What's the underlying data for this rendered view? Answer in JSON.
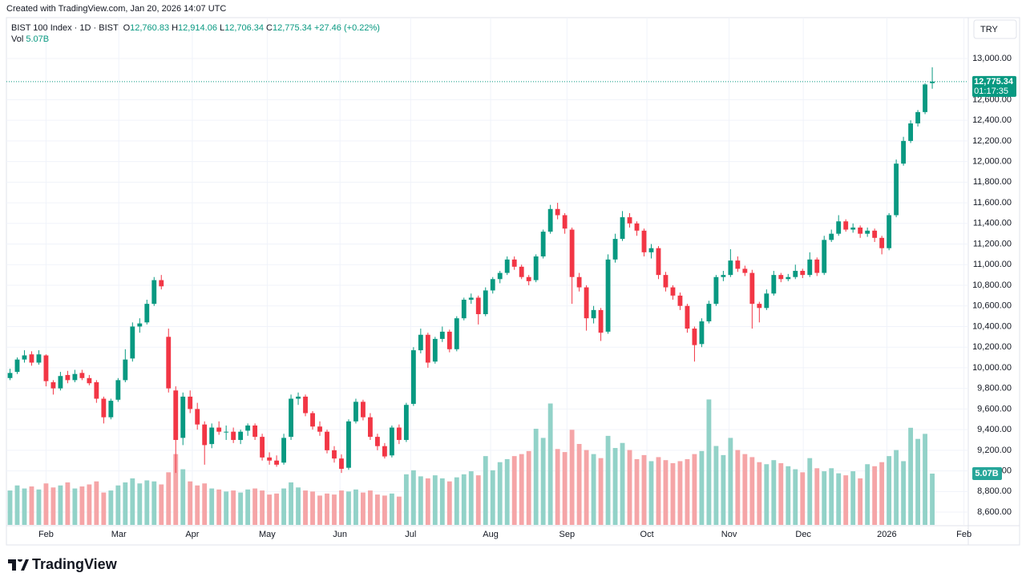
{
  "created": "Created with TradingView.com, Jan 20, 2026 14:07 UTC",
  "brand": "TradingView",
  "currency": "TRY",
  "legend": {
    "symbol": "BIST 100 Index · 1D · BIST",
    "fields": [
      {
        "key": "O",
        "value": "12,760.83"
      },
      {
        "key": "H",
        "value": "12,914.06"
      },
      {
        "key": "L",
        "value": "12,706.34"
      },
      {
        "key": "C",
        "value": "12,775.34"
      }
    ],
    "change": "+27.46 (+0.22%)",
    "vol_key": "Vol",
    "vol_value": "5.07B"
  },
  "last_price_label": "12,775.34",
  "countdown": "01:17:35",
  "volume_label": "5.07B",
  "chart_data": {
    "type": "candlestick",
    "up_color": "#089981",
    "down_color": "#f23645",
    "up_volume_color": "#92d2c8",
    "down_volume_color": "#f5a5a7",
    "grid": true,
    "xlim": [
      -0.5,
      133
    ],
    "xticks": [
      {
        "value": 5,
        "label": "Feb"
      },
      {
        "value": 15.1,
        "label": "Mar"
      },
      {
        "value": 25.3,
        "label": "Apr"
      },
      {
        "value": 35.7,
        "label": "May"
      },
      {
        "value": 45.8,
        "label": "Jun"
      },
      {
        "value": 55.6,
        "label": "Jul"
      },
      {
        "value": 66.7,
        "label": "Aug"
      },
      {
        "value": 77.3,
        "label": "Sep"
      },
      {
        "value": 88.4,
        "label": "Oct"
      },
      {
        "value": 99.8,
        "label": "Nov"
      },
      {
        "value": 110.1,
        "label": "Dec"
      },
      {
        "value": 121.7,
        "label": "2026"
      },
      {
        "value": 132.4,
        "label": "Feb"
      }
    ],
    "ylim": [
      8476,
      13396
    ],
    "yticks": [
      {
        "value": 8600,
        "label": "8,600.00"
      },
      {
        "value": 8800,
        "label": "8,800.00"
      },
      {
        "value": 9000,
        "label": "9,000.00"
      },
      {
        "value": 9200,
        "label": "9,200.00"
      },
      {
        "value": 9400,
        "label": "9,400.00"
      },
      {
        "value": 9600,
        "label": "9,600.00"
      },
      {
        "value": 9800,
        "label": "9,800.00"
      },
      {
        "value": 10000,
        "label": "10,000.00"
      },
      {
        "value": 10200,
        "label": "10,200.00"
      },
      {
        "value": 10400,
        "label": "10,400.00"
      },
      {
        "value": 10600,
        "label": "10,600.00"
      },
      {
        "value": 10800,
        "label": "10,800.00"
      },
      {
        "value": 11000,
        "label": "11,000.00"
      },
      {
        "value": 11200,
        "label": "11,200.00"
      },
      {
        "value": 11400,
        "label": "11,400.00"
      },
      {
        "value": 11600,
        "label": "11,600.00"
      },
      {
        "value": 11800,
        "label": "11,800.00"
      },
      {
        "value": 12000,
        "label": "12,000.00"
      },
      {
        "value": 12200,
        "label": "12,200.00"
      },
      {
        "value": 12400,
        "label": "12,400.00"
      },
      {
        "value": 12600,
        "label": "12,600.00"
      },
      {
        "value": 13000,
        "label": "13,000.00"
      }
    ],
    "volume_ylim": [
      0,
      16
    ],
    "candles": [
      [
        9900,
        9990,
        9880,
        9950,
        3.4
      ],
      [
        9960,
        10100,
        9940,
        10080,
        3.9
      ],
      [
        10080,
        10170,
        10050,
        10120,
        3.6
      ],
      [
        10130,
        10160,
        10020,
        10050,
        3.8
      ],
      [
        10050,
        10170,
        10030,
        10130,
        3.5
      ],
      [
        10120,
        10130,
        9820,
        9870,
        4.1
      ],
      [
        9860,
        9880,
        9740,
        9800,
        3.7
      ],
      [
        9800,
        9960,
        9780,
        9920,
        3.9
      ],
      [
        9930,
        9970,
        9850,
        9880,
        4.2
      ],
      [
        9880,
        9980,
        9860,
        9940,
        3.6
      ],
      [
        9950,
        9980,
        9880,
        9900,
        3.8
      ],
      [
        9900,
        9930,
        9830,
        9850,
        4.0
      ],
      [
        9860,
        9880,
        9660,
        9700,
        4.3
      ],
      [
        9700,
        9720,
        9460,
        9520,
        3.2
      ],
      [
        9520,
        9700,
        9500,
        9680,
        3.4
      ],
      [
        9690,
        9900,
        9670,
        9880,
        3.9
      ],
      [
        9880,
        10180,
        9860,
        10080,
        4.2
      ],
      [
        10090,
        10440,
        10060,
        10400,
        4.6
      ],
      [
        10400,
        10480,
        10340,
        10430,
        4.1
      ],
      [
        10440,
        10660,
        10420,
        10620,
        4.4
      ],
      [
        10620,
        10880,
        10600,
        10850,
        4.3
      ],
      [
        10850,
        10900,
        10760,
        10790,
        4.0
      ],
      [
        10300,
        10380,
        9760,
        9800,
        5.2
      ],
      [
        9780,
        9820,
        8980,
        9300,
        7.0
      ],
      [
        9320,
        9760,
        9250,
        9720,
        5.5
      ],
      [
        9720,
        9780,
        9560,
        9600,
        4.3
      ],
      [
        9600,
        9660,
        9400,
        9450,
        3.9
      ],
      [
        9450,
        9480,
        9060,
        9250,
        4.1
      ],
      [
        9260,
        9460,
        9220,
        9420,
        3.6
      ],
      [
        9420,
        9480,
        9350,
        9380,
        3.5
      ],
      [
        9380,
        9440,
        9300,
        9380,
        3.3
      ],
      [
        9380,
        9420,
        9270,
        9300,
        3.4
      ],
      [
        9300,
        9400,
        9260,
        9380,
        3.2
      ],
      [
        9390,
        9460,
        9340,
        9440,
        3.5
      ],
      [
        9440,
        9460,
        9300,
        9330,
        3.6
      ],
      [
        9330,
        9360,
        9100,
        9130,
        3.4
      ],
      [
        9130,
        9180,
        9060,
        9100,
        3.0
      ],
      [
        9100,
        9150,
        9040,
        9060,
        3.1
      ],
      [
        9080,
        9360,
        9060,
        9320,
        3.6
      ],
      [
        9330,
        9740,
        9300,
        9700,
        4.2
      ],
      [
        9700,
        9760,
        9640,
        9720,
        3.7
      ],
      [
        9720,
        9740,
        9530,
        9560,
        3.4
      ],
      [
        9560,
        9580,
        9400,
        9430,
        3.3
      ],
      [
        9430,
        9480,
        9340,
        9380,
        2.9
      ],
      [
        9380,
        9400,
        9170,
        9200,
        3.1
      ],
      [
        9200,
        9240,
        9080,
        9120,
        3.0
      ],
      [
        9120,
        9160,
        8980,
        9020,
        3.4
      ],
      [
        9030,
        9500,
        9010,
        9480,
        3.3
      ],
      [
        9480,
        9700,
        9460,
        9670,
        3.5
      ],
      [
        9670,
        9690,
        9490,
        9520,
        3.2
      ],
      [
        9520,
        9560,
        9300,
        9330,
        3.4
      ],
      [
        9330,
        9360,
        9200,
        9240,
        3.0
      ],
      [
        9240,
        9270,
        9120,
        9140,
        2.9
      ],
      [
        9150,
        9440,
        9130,
        9420,
        3.1
      ],
      [
        9420,
        9450,
        9260,
        9300,
        2.8
      ],
      [
        9300,
        9660,
        9280,
        9640,
        5.0
      ],
      [
        9650,
        10200,
        9630,
        10170,
        5.4
      ],
      [
        10170,
        10380,
        10140,
        10320,
        4.8
      ],
      [
        10320,
        10340,
        10000,
        10050,
        4.6
      ],
      [
        10060,
        10300,
        10040,
        10280,
        4.9
      ],
      [
        10280,
        10400,
        10250,
        10350,
        4.6
      ],
      [
        10350,
        10370,
        10150,
        10180,
        4.3
      ],
      [
        10180,
        10500,
        10160,
        10480,
        4.7
      ],
      [
        10480,
        10680,
        10460,
        10660,
        5.0
      ],
      [
        10660,
        10720,
        10620,
        10680,
        5.3
      ],
      [
        10680,
        10700,
        10420,
        10520,
        4.9
      ],
      [
        10520,
        10780,
        10500,
        10750,
        6.8
      ],
      [
        10750,
        10880,
        10720,
        10860,
        5.4
      ],
      [
        10860,
        10940,
        10820,
        10920,
        6.2
      ],
      [
        10920,
        11080,
        10900,
        11050,
        6.5
      ],
      [
        11050,
        11080,
        10950,
        10980,
        6.8
      ],
      [
        10980,
        11000,
        10860,
        10880,
        7.0
      ],
      [
        10880,
        10900,
        10800,
        10840,
        7.3
      ],
      [
        10850,
        11100,
        10830,
        11080,
        9.5
      ],
      [
        11080,
        11340,
        11060,
        11320,
        8.6
      ],
      [
        11320,
        11580,
        11300,
        11540,
        12.0
      ],
      [
        11540,
        11600,
        11440,
        11480,
        7.5
      ],
      [
        11480,
        11500,
        11300,
        11350,
        7.2
      ],
      [
        11340,
        11360,
        10620,
        10880,
        9.4
      ],
      [
        10880,
        10920,
        10740,
        10780,
        8.0
      ],
      [
        10780,
        10800,
        10360,
        10480,
        7.4
      ],
      [
        10480,
        10600,
        10430,
        10560,
        7.0
      ],
      [
        10560,
        10580,
        10260,
        10340,
        6.6
      ],
      [
        10350,
        11100,
        10330,
        11050,
        8.8
      ],
      [
        11050,
        11300,
        11020,
        11250,
        7.6
      ],
      [
        11250,
        11520,
        11230,
        11460,
        8.1
      ],
      [
        11460,
        11500,
        11360,
        11400,
        7.4
      ],
      [
        11400,
        11420,
        11280,
        11330,
        6.5
      ],
      [
        11330,
        11350,
        11080,
        11120,
        6.9
      ],
      [
        11120,
        11200,
        11060,
        11160,
        6.3
      ],
      [
        11160,
        11180,
        10860,
        10900,
        6.7
      ],
      [
        10900,
        10930,
        10740,
        10780,
        6.4
      ],
      [
        10780,
        10800,
        10660,
        10700,
        6.1
      ],
      [
        10700,
        10730,
        10560,
        10600,
        6.3
      ],
      [
        10600,
        10620,
        10340,
        10380,
        6.5
      ],
      [
        10380,
        10400,
        10060,
        10220,
        7.0
      ],
      [
        10230,
        10480,
        10200,
        10450,
        7.3
      ],
      [
        10450,
        10650,
        10430,
        10620,
        12.4
      ],
      [
        10620,
        10900,
        10600,
        10880,
        7.8
      ],
      [
        10880,
        10940,
        10840,
        10900,
        6.9
      ],
      [
        10900,
        11150,
        10880,
        11040,
        8.6
      ],
      [
        11040,
        11080,
        10930,
        10960,
        7.4
      ],
      [
        10960,
        10990,
        10890,
        10920,
        7.0
      ],
      [
        10920,
        10950,
        10380,
        10620,
        6.7
      ],
      [
        10620,
        10640,
        10440,
        10580,
        6.2
      ],
      [
        10580,
        10760,
        10560,
        10720,
        6.0
      ],
      [
        10720,
        10940,
        10700,
        10900,
        6.4
      ],
      [
        10900,
        10920,
        10830,
        10860,
        6.1
      ],
      [
        10860,
        10910,
        10840,
        10880,
        5.8
      ],
      [
        10880,
        11000,
        10860,
        10940,
        5.5
      ],
      [
        10940,
        10960,
        10870,
        10900,
        5.2
      ],
      [
        10900,
        11120,
        10880,
        11050,
        6.6
      ],
      [
        11050,
        11070,
        10890,
        10920,
        5.6
      ],
      [
        10920,
        11280,
        10900,
        11240,
        5.3
      ],
      [
        11240,
        11340,
        11220,
        11300,
        5.6
      ],
      [
        11300,
        11480,
        11280,
        11420,
        5.1
      ],
      [
        11420,
        11440,
        11320,
        11340,
        4.9
      ],
      [
        11340,
        11400,
        11310,
        11360,
        5.3
      ],
      [
        11360,
        11380,
        11260,
        11300,
        4.6
      ],
      [
        11300,
        11360,
        11270,
        11330,
        6.0
      ],
      [
        11330,
        11350,
        11220,
        11260,
        5.8
      ],
      [
        11260,
        11280,
        11100,
        11160,
        6.2
      ],
      [
        11160,
        11500,
        11140,
        11480,
        6.8
      ],
      [
        11480,
        12020,
        11460,
        11980,
        7.4
      ],
      [
        11980,
        12240,
        11960,
        12200,
        6.3
      ],
      [
        12200,
        12400,
        12180,
        12370,
        9.6
      ],
      [
        12370,
        12500,
        12340,
        12480,
        8.5
      ],
      [
        12480,
        12760,
        12460,
        12747.88,
        9.0
      ],
      [
        12760.83,
        12914.06,
        12706.34,
        12775.34,
        5.07
      ]
    ]
  }
}
